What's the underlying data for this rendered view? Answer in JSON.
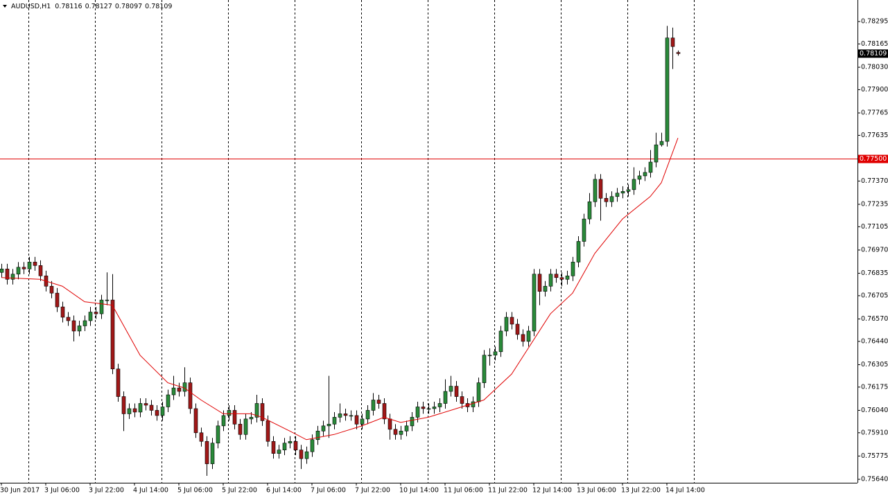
{
  "chart_data": {
    "type": "candlestick",
    "symbol": "AUDUSD,H1",
    "categories": [
      "30 Jun 2017",
      null,
      null,
      null,
      null,
      null,
      null,
      null,
      "3 Jul 06:00",
      null,
      null,
      null,
      null,
      null,
      null,
      null,
      "3 Jul 22:00",
      null,
      null,
      null,
      null,
      null,
      null,
      null,
      "4 Jul 14:00",
      null,
      null,
      null,
      null,
      null,
      null,
      null,
      "5 Jul 06:00",
      null,
      null,
      null,
      null,
      null,
      null,
      null,
      "5 Jul 22:00",
      null,
      null,
      null,
      null,
      null,
      null,
      null,
      "6 Jul 14:00",
      null,
      null,
      null,
      null,
      null,
      null,
      null,
      "7 Jul 06:00",
      null,
      null,
      null,
      null,
      null,
      null,
      null,
      "7 Jul 22:00",
      null,
      null,
      null,
      null,
      null,
      null,
      null,
      "10 Jul 14:00",
      null,
      null,
      null,
      null,
      null,
      null,
      null,
      "11 Jul 06:00",
      null,
      null,
      null,
      null,
      null,
      null,
      null,
      "11 Jul 22:00",
      null,
      null,
      null,
      null,
      null,
      null,
      null,
      "12 Jul 14:00",
      null,
      null,
      null,
      null,
      null,
      null,
      null,
      "13 Jul 06:00",
      null,
      null,
      null,
      null,
      null,
      null,
      null,
      "13 Jul 22:00",
      null,
      null,
      null,
      null,
      null,
      null,
      null,
      "14 Jul 14:00",
      null,
      null
    ],
    "open": [
      0.7684,
      0.7686,
      0.768,
      0.7683,
      0.7687,
      0.7686,
      0.769,
      0.7688,
      0.7682,
      0.7676,
      0.7672,
      0.7664,
      0.7658,
      0.7656,
      0.765,
      0.7653,
      0.7656,
      0.7661,
      0.766,
      0.7668,
      0.7668,
      0.7628,
      0.7612,
      0.7602,
      0.7605,
      0.7603,
      0.7608,
      0.7607,
      0.7604,
      0.7601,
      0.7606,
      0.7613,
      0.7617,
      0.7615,
      0.762,
      0.7605,
      0.7591,
      0.7586,
      0.7573,
      0.7585,
      0.7595,
      0.7601,
      0.7604,
      0.7596,
      0.759,
      0.7599,
      0.76,
      0.7608,
      0.7598,
      0.7586,
      0.7579,
      0.7581,
      0.7585,
      0.7586,
      0.7581,
      0.7576,
      0.758,
      0.7587,
      0.7592,
      0.7595,
      0.7596,
      0.76,
      0.7602,
      0.7601,
      0.7601,
      0.7596,
      0.7599,
      0.7604,
      0.761,
      0.7608,
      0.7599,
      0.7593,
      0.759,
      0.7592,
      0.7595,
      0.76,
      0.7606,
      0.7605,
      0.7605,
      0.7606,
      0.7608,
      0.7615,
      0.7618,
      0.7612,
      0.7608,
      0.7606,
      0.7609,
      0.762,
      0.7636,
      0.7636,
      0.7638,
      0.765,
      0.7658,
      0.7654,
      0.7648,
      0.7644,
      0.765,
      0.7683,
      0.7673,
      0.7676,
      0.7683,
      0.7681,
      0.768,
      0.7682,
      0.769,
      0.7702,
      0.7715,
      0.7725,
      0.7738,
      0.7727,
      0.7725,
      0.7728,
      0.773,
      0.7731,
      0.7732,
      0.7738,
      0.774,
      0.7742,
      0.7748,
      0.7758,
      0.776,
      0.782,
      0.78116
    ],
    "high": [
      0.7689,
      0.7689,
      0.7686,
      0.769,
      0.769,
      0.7693,
      0.7693,
      0.7691,
      0.7685,
      0.7679,
      0.7675,
      0.7667,
      0.7661,
      0.7659,
      0.7656,
      0.7659,
      0.7664,
      0.7664,
      0.7671,
      0.7684,
      0.7683,
      0.7631,
      0.7615,
      0.7608,
      0.7608,
      0.7611,
      0.7611,
      0.761,
      0.7607,
      0.7609,
      0.7616,
      0.7624,
      0.762,
      0.7629,
      0.7623,
      0.7608,
      0.7594,
      0.7589,
      0.7588,
      0.7598,
      0.7604,
      0.7607,
      0.7607,
      0.7599,
      0.7602,
      0.7603,
      0.7613,
      0.7611,
      0.7601,
      0.7589,
      0.7584,
      0.7588,
      0.7589,
      0.7589,
      0.7584,
      0.7583,
      0.759,
      0.7595,
      0.7598,
      0.7624,
      0.7603,
      0.7608,
      0.7605,
      0.7604,
      0.7604,
      0.7602,
      0.7607,
      0.7614,
      0.7613,
      0.7611,
      0.7602,
      0.7596,
      0.7595,
      0.7598,
      0.7603,
      0.7609,
      0.7609,
      0.7608,
      0.7609,
      0.7611,
      0.7622,
      0.7624,
      0.7621,
      0.7615,
      0.7611,
      0.7612,
      0.7623,
      0.7639,
      0.764,
      0.7641,
      0.7653,
      0.7661,
      0.7661,
      0.7657,
      0.7651,
      0.7653,
      0.7686,
      0.7686,
      0.7679,
      0.7686,
      0.7686,
      0.7684,
      0.7685,
      0.7693,
      0.7705,
      0.7718,
      0.773,
      0.7741,
      0.7741,
      0.773,
      0.7731,
      0.7733,
      0.7734,
      0.7735,
      0.7745,
      0.7743,
      0.7745,
      0.7755,
      0.7765,
      0.7765,
      0.7827,
      0.7826,
      0.78127
    ],
    "low": [
      0.7681,
      0.7677,
      0.7677,
      0.768,
      0.7683,
      0.7683,
      0.7685,
      0.7679,
      0.7673,
      0.7669,
      0.7661,
      0.7655,
      0.7653,
      0.7644,
      0.7647,
      0.765,
      0.7653,
      0.7657,
      0.7657,
      0.7665,
      0.7625,
      0.7609,
      0.7592,
      0.7599,
      0.76,
      0.76,
      0.7604,
      0.7601,
      0.7598,
      0.7598,
      0.7603,
      0.761,
      0.7612,
      0.7612,
      0.7602,
      0.7588,
      0.7583,
      0.7566,
      0.757,
      0.7582,
      0.7592,
      0.7598,
      0.7593,
      0.7587,
      0.7587,
      0.7596,
      0.7597,
      0.7595,
      0.7583,
      0.7576,
      0.7576,
      0.7578,
      0.7582,
      0.7578,
      0.757,
      0.7573,
      0.7577,
      0.7584,
      0.7589,
      0.7588,
      0.7593,
      0.7597,
      0.7598,
      0.7598,
      0.7593,
      0.7593,
      0.7596,
      0.7601,
      0.7605,
      0.7596,
      0.7587,
      0.7587,
      0.7587,
      0.7589,
      0.7592,
      0.7597,
      0.7602,
      0.7602,
      0.7602,
      0.7603,
      0.7605,
      0.7612,
      0.7609,
      0.7605,
      0.7603,
      0.7603,
      0.7606,
      0.7617,
      0.763,
      0.7633,
      0.7635,
      0.7647,
      0.7651,
      0.7645,
      0.7641,
      0.7641,
      0.7647,
      0.7665,
      0.767,
      0.7673,
      0.7678,
      0.7676,
      0.7677,
      0.7679,
      0.7687,
      0.7699,
      0.7712,
      0.7722,
      0.7714,
      0.7722,
      0.7722,
      0.7725,
      0.7727,
      0.7728,
      0.7729,
      0.7735,
      0.7737,
      0.7739,
      0.7745,
      0.7757,
      0.7757,
      0.7802,
      0.78097
    ],
    "close": [
      0.7686,
      0.768,
      0.7683,
      0.7687,
      0.7686,
      0.769,
      0.7688,
      0.7682,
      0.7676,
      0.7672,
      0.7664,
      0.7658,
      0.7656,
      0.765,
      0.7653,
      0.7656,
      0.7661,
      0.766,
      0.7668,
      0.7668,
      0.7628,
      0.7612,
      0.7602,
      0.7605,
      0.7603,
      0.7608,
      0.7607,
      0.7604,
      0.7601,
      0.7606,
      0.7613,
      0.7617,
      0.7615,
      0.762,
      0.7605,
      0.7591,
      0.7586,
      0.7573,
      0.7585,
      0.7595,
      0.7601,
      0.7604,
      0.7596,
      0.759,
      0.7599,
      0.76,
      0.7608,
      0.7598,
      0.7586,
      0.7579,
      0.7581,
      0.7585,
      0.7586,
      0.7581,
      0.7576,
      0.758,
      0.7587,
      0.7592,
      0.7595,
      0.7596,
      0.76,
      0.7602,
      0.7601,
      0.7601,
      0.7596,
      0.7599,
      0.7604,
      0.761,
      0.7608,
      0.7599,
      0.7593,
      0.759,
      0.7592,
      0.7595,
      0.76,
      0.7606,
      0.7605,
      0.7605,
      0.7606,
      0.7608,
      0.7615,
      0.7618,
      0.7612,
      0.7608,
      0.7606,
      0.7609,
      0.762,
      0.7636,
      0.7636,
      0.7638,
      0.765,
      0.7658,
      0.7654,
      0.7648,
      0.7644,
      0.765,
      0.7683,
      0.7673,
      0.7676,
      0.7683,
      0.7681,
      0.768,
      0.7682,
      0.769,
      0.7702,
      0.7715,
      0.7725,
      0.7738,
      0.7727,
      0.7725,
      0.7728,
      0.773,
      0.7731,
      0.7732,
      0.7738,
      0.774,
      0.7742,
      0.7748,
      0.7758,
      0.776,
      0.782,
      0.7815,
      0.78109
    ],
    "up_color": "#2a8a3a",
    "down_color": "#a01818",
    "ma": {
      "color": "#e00000",
      "x": [
        0,
        7,
        11,
        15,
        20,
        25,
        30,
        33,
        36,
        40,
        45,
        47,
        52,
        55,
        60,
        65,
        69,
        72,
        77,
        82,
        87,
        92,
        95,
        99,
        103,
        107,
        112,
        117,
        119,
        122
      ],
      "values": [
        0.7681,
        0.768,
        0.7676,
        0.7667,
        0.7665,
        0.7636,
        0.762,
        0.7617,
        0.761,
        0.7602,
        0.7602,
        0.76,
        0.7592,
        0.7587,
        0.759,
        0.7595,
        0.76,
        0.7597,
        0.76,
        0.7605,
        0.761,
        0.7625,
        0.764,
        0.766,
        0.7672,
        0.7695,
        0.7715,
        0.7728,
        0.7736,
        0.7762
      ]
    },
    "hline": {
      "value": 0.775,
      "label": "0.77500",
      "color": "#e00000"
    },
    "ylim": [
      0.7562,
      0.7842
    ],
    "yticks": [
      0.78295,
      0.78165,
      {
        "value": 0.7803,
        "label": "0.78030"
      },
      {
        "value": 0.779,
        "label": "0.77900"
      },
      0.77765,
      0.77635,
      {
        "value": 0.7737,
        "label": "0.77370"
      },
      0.77235,
      0.77105,
      {
        "value": 0.7697,
        "label": "0.76970"
      },
      0.76835,
      0.76705,
      {
        "value": 0.7657,
        "label": "0.76570"
      },
      {
        "value": 0.7644,
        "label": "0.76440"
      },
      0.76305,
      0.76175,
      {
        "value": 0.7604,
        "label": "0.76040"
      },
      {
        "value": 0.7591,
        "label": "0.75910"
      },
      0.75775,
      {
        "value": 0.7564,
        "label": "0.75640"
      }
    ]
  }
}
